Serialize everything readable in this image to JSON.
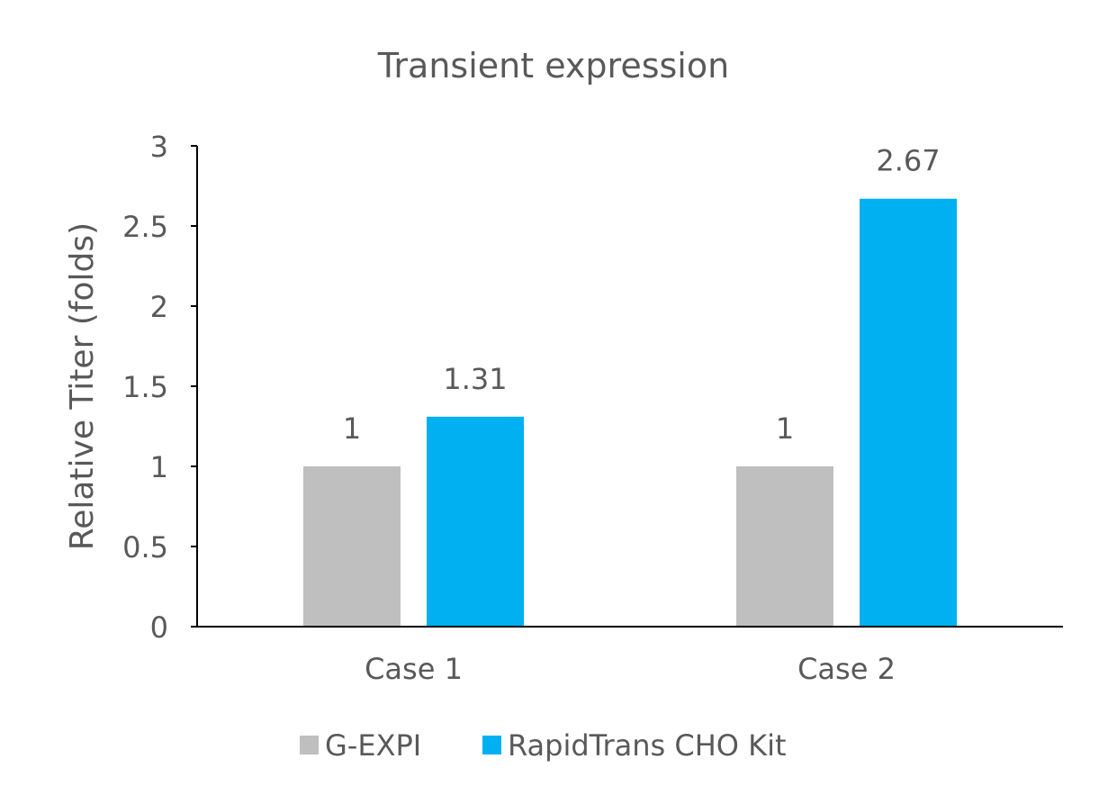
{
  "chart_data": {
    "type": "bar",
    "title": "Transient expression",
    "xlabel": "",
    "ylabel": "Relative Titer (folds)",
    "categories": [
      "Case 1",
      "Case 2"
    ],
    "series": [
      {
        "name": "G-EXPI",
        "values": [
          1,
          1
        ],
        "labels": [
          "1",
          "1"
        ],
        "color": "#bfbfbf"
      },
      {
        "name": "RapidTrans CHO Kit",
        "values": [
          1.31,
          2.67
        ],
        "labels": [
          "1.31",
          "2.67"
        ],
        "color": "#00b0f0"
      }
    ],
    "ylim": [
      0,
      3
    ],
    "yticks": [
      "0",
      "0.5",
      "1",
      "1.5",
      "2",
      "2.5",
      "3"
    ],
    "grid": false,
    "legend": "bottom"
  }
}
